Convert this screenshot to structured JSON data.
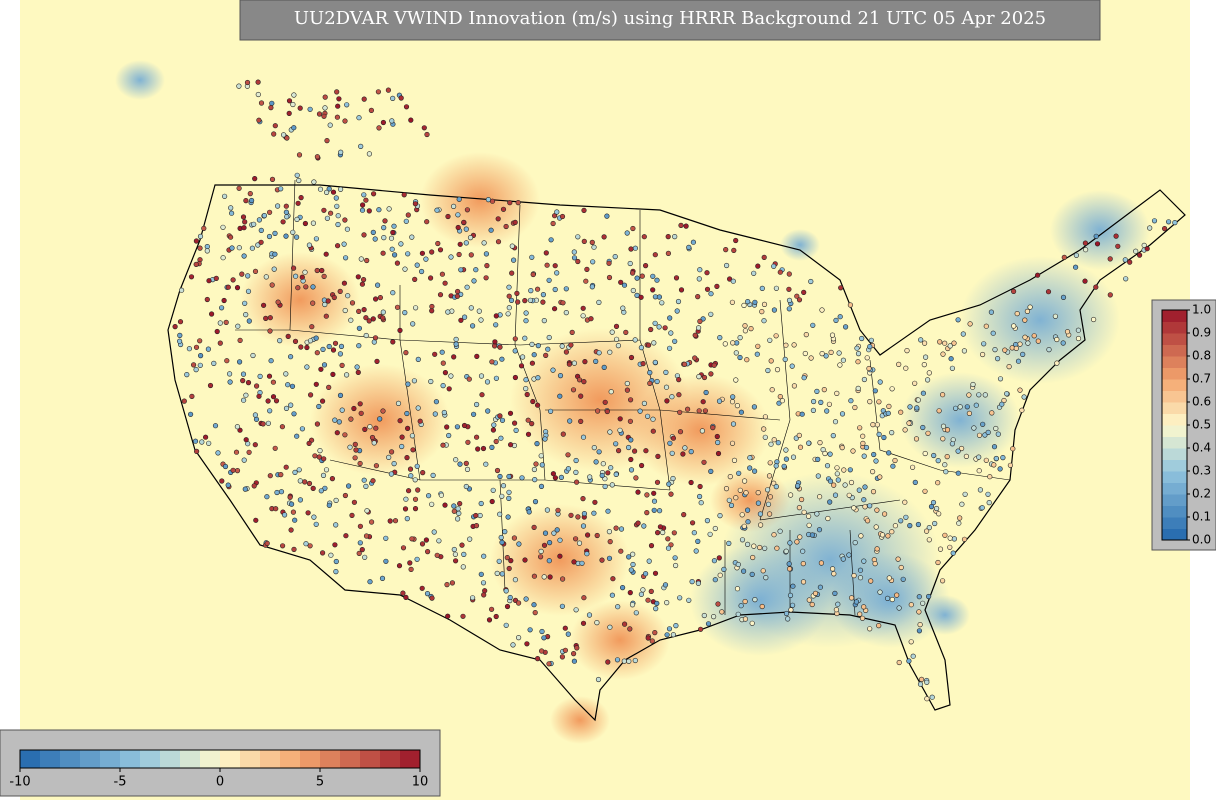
{
  "title": "UU2DVAR VWIND Innovation (m/s) using HRRR Background 21 UTC 05 Apr 2025",
  "colorbars": [
    {
      "orientation": "horizontal",
      "ticks": [
        -10,
        -5,
        0,
        5,
        10
      ]
    },
    {
      "orientation": "vertical",
      "ticks": [
        {
          "value": 0,
          "label": "0.0"
        },
        0.1,
        0.2,
        0.3,
        0.4,
        0.5,
        0.6,
        0.7,
        0.8,
        0.9,
        {
          "value": 1,
          "label": "1.0"
        }
      ]
    }
  ]
}
